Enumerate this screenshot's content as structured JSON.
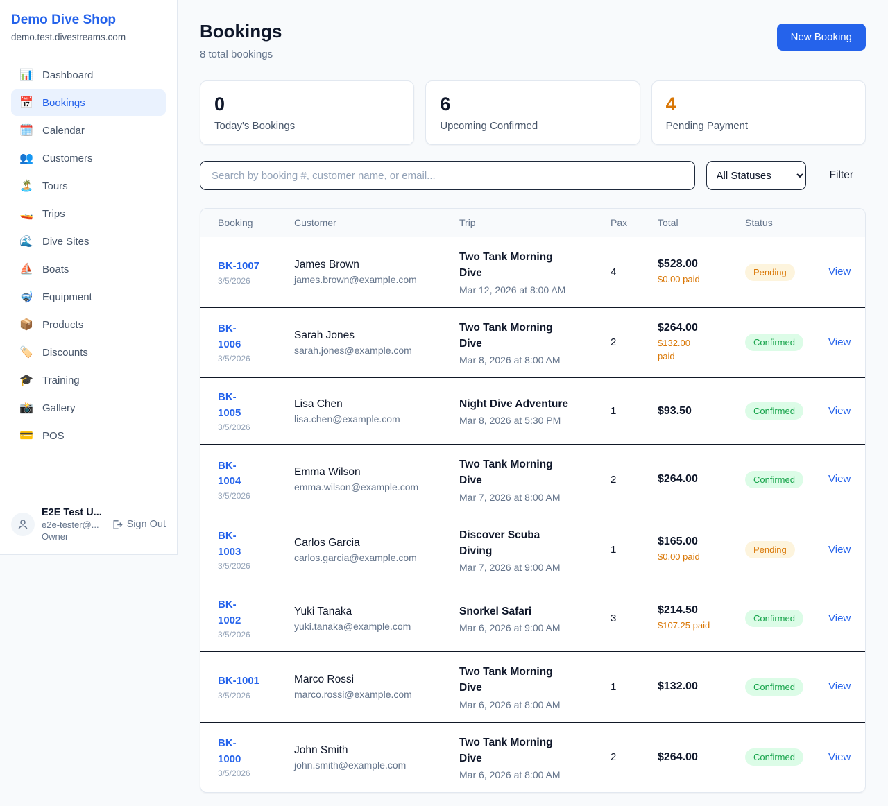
{
  "sidebar": {
    "brand": "Demo Dive Shop",
    "domain": "demo.test.divestreams.com",
    "items": [
      {
        "icon": "📊",
        "label": "Dashboard",
        "active": false
      },
      {
        "icon": "📅",
        "label": "Bookings",
        "active": true
      },
      {
        "icon": "🗓️",
        "label": "Calendar",
        "active": false
      },
      {
        "icon": "👥",
        "label": "Customers",
        "active": false
      },
      {
        "icon": "🏝️",
        "label": "Tours",
        "active": false
      },
      {
        "icon": "🚤",
        "label": "Trips",
        "active": false
      },
      {
        "icon": "🌊",
        "label": "Dive Sites",
        "active": false
      },
      {
        "icon": "⛵",
        "label": "Boats",
        "active": false
      },
      {
        "icon": "🤿",
        "label": "Equipment",
        "active": false
      },
      {
        "icon": "📦",
        "label": "Products",
        "active": false
      },
      {
        "icon": "🏷️",
        "label": "Discounts",
        "active": false
      },
      {
        "icon": "🎓",
        "label": "Training",
        "active": false
      },
      {
        "icon": "📸",
        "label": "Gallery",
        "active": false
      },
      {
        "icon": "💳",
        "label": "POS",
        "active": false
      }
    ],
    "user": {
      "name": "E2E Test U...",
      "email": "e2e-tester@...",
      "role": "Owner",
      "sign_out_label": "Sign Out"
    }
  },
  "header": {
    "title": "Bookings",
    "subtitle": "8 total bookings",
    "new_booking_label": "New Booking"
  },
  "stats": [
    {
      "value": "0",
      "label": "Today's Bookings",
      "accent": "dark"
    },
    {
      "value": "6",
      "label": "Upcoming Confirmed",
      "accent": "dark"
    },
    {
      "value": "4",
      "label": "Pending Payment",
      "accent": "orange"
    }
  ],
  "toolbar": {
    "search_placeholder": "Search by booking #, customer name, or email...",
    "status_filter_value": "All Statuses",
    "filter_label": "Filter"
  },
  "table": {
    "columns": [
      "Booking",
      "Customer",
      "Trip",
      "Pax",
      "Total",
      "Status",
      ""
    ],
    "view_label": "View",
    "rows": [
      {
        "id": "BK-1007",
        "date": "3/5/2026",
        "customer": "James Brown",
        "email": "james.brown@example.com",
        "trip": "Two Tank Morning\nDive",
        "trip_time": "Mar 12, 2026 at 8:00 AM",
        "pax": "4",
        "total": "$528.00",
        "paid": "$0.00 paid",
        "status": "Pending"
      },
      {
        "id": "BK-\n1006",
        "date": "3/5/2026",
        "customer": "Sarah Jones",
        "email": "sarah.jones@example.com",
        "trip": "Two Tank Morning\nDive",
        "trip_time": "Mar 8, 2026 at 8:00 AM",
        "pax": "2",
        "total": "$264.00",
        "paid": "$132.00\npaid",
        "status": "Confirmed"
      },
      {
        "id": "BK-\n1005",
        "date": "3/5/2026",
        "customer": "Lisa Chen",
        "email": "lisa.chen@example.com",
        "trip": "Night Dive Adventure",
        "trip_time": "Mar 8, 2026 at 5:30 PM",
        "pax": "1",
        "total": "$93.50",
        "paid": "",
        "status": "Confirmed"
      },
      {
        "id": "BK-\n1004",
        "date": "3/5/2026",
        "customer": "Emma Wilson",
        "email": "emma.wilson@example.com",
        "trip": "Two Tank Morning\nDive",
        "trip_time": "Mar 7, 2026 at 8:00 AM",
        "pax": "2",
        "total": "$264.00",
        "paid": "",
        "status": "Confirmed"
      },
      {
        "id": "BK-\n1003",
        "date": "3/5/2026",
        "customer": "Carlos Garcia",
        "email": "carlos.garcia@example.com",
        "trip": "Discover Scuba\nDiving",
        "trip_time": "Mar 7, 2026 at 9:00 AM",
        "pax": "1",
        "total": "$165.00",
        "paid": "$0.00 paid",
        "status": "Pending"
      },
      {
        "id": "BK-\n1002",
        "date": "3/5/2026",
        "customer": "Yuki Tanaka",
        "email": "yuki.tanaka@example.com",
        "trip": "Snorkel Safari",
        "trip_time": "Mar 6, 2026 at 9:00 AM",
        "pax": "3",
        "total": "$214.50",
        "paid": "$107.25 paid",
        "status": "Confirmed"
      },
      {
        "id": "BK-1001",
        "date": "3/5/2026",
        "customer": "Marco Rossi",
        "email": "marco.rossi@example.com",
        "trip": "Two Tank Morning\nDive",
        "trip_time": "Mar 6, 2026 at 8:00 AM",
        "pax": "1",
        "total": "$132.00",
        "paid": "",
        "status": "Confirmed"
      },
      {
        "id": "BK-\n1000",
        "date": "3/5/2026",
        "customer": "John Smith",
        "email": "john.smith@example.com",
        "trip": "Two Tank Morning\nDive",
        "trip_time": "Mar 6, 2026 at 8:00 AM",
        "pax": "2",
        "total": "$264.00",
        "paid": "",
        "status": "Confirmed"
      }
    ]
  },
  "colors": {
    "accent_blue": "#2563eb",
    "pending_text": "#d97706",
    "confirmed_text": "#16a34a",
    "pending_bg": "#fdf4dd",
    "confirmed_bg": "#dcfce7"
  }
}
